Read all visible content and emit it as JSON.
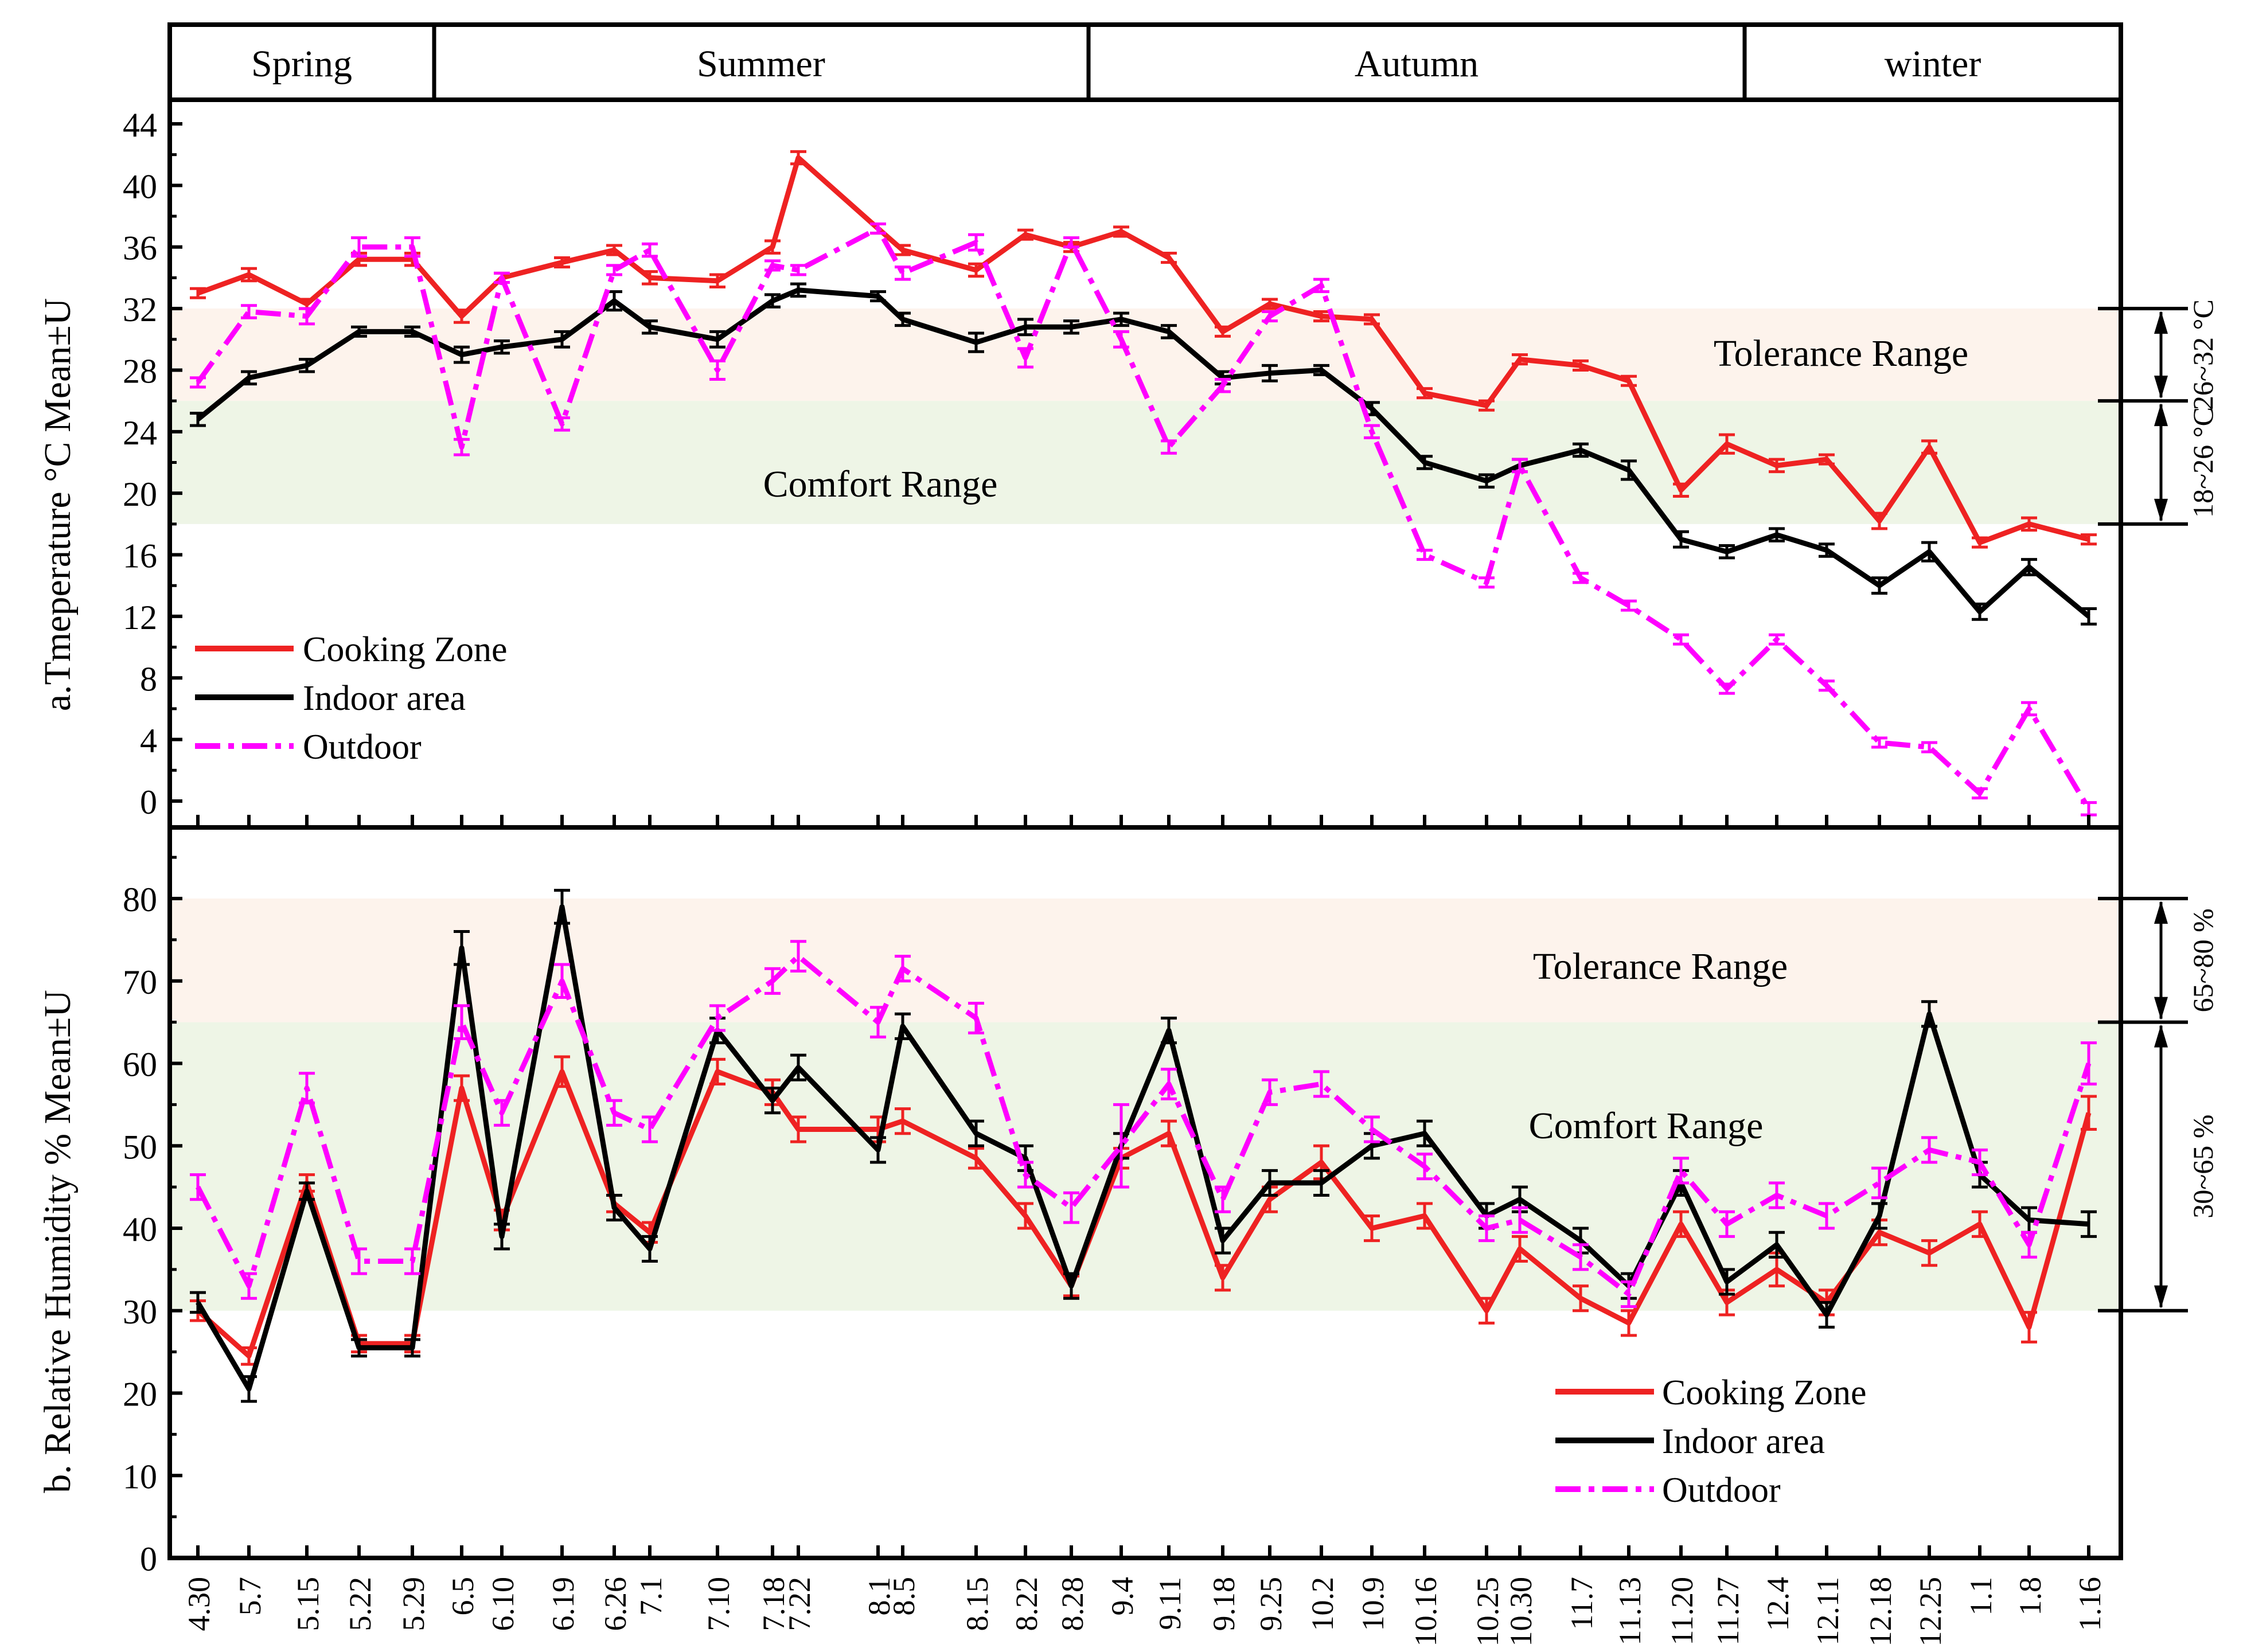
{
  "colors": {
    "cooking": "#ee2222",
    "indoor": "#000000",
    "outdoor": "#ff00ff",
    "tolerance_band": "#fdf3ec",
    "comfort_band": "#eef5e6"
  },
  "seasons": [
    "Spring",
    "Summer",
    "Autumn",
    "winter"
  ],
  "dates": [
    "4.30",
    "5.7",
    "5.15",
    "5.22",
    "5.29",
    "6.5",
    "6.10",
    "6.19",
    "6.26",
    "7.1",
    "7.10",
    "7.18",
    "7.22",
    "8.1",
    "8.5",
    "8.15",
    "8.22",
    "8.28",
    "9.4",
    "9.11",
    "9.18",
    "9.25",
    "10.2",
    "10.9",
    "10.16",
    "10.25",
    "10.30",
    "11.7",
    "11.13",
    "11.20",
    "11.27",
    "12.4",
    "12.11",
    "12.18",
    "12.25",
    "1.1",
    "1.8",
    "1.16"
  ],
  "chart_data": [
    {
      "type": "line",
      "title": "a.Tmeperature °C   Mean±U",
      "ylabel": "a.Tmeperature °C   Mean±U",
      "ylim": [
        -2,
        46
      ],
      "yticks": [
        "0",
        "4",
        "8",
        "12",
        "16",
        "20",
        "24",
        "28",
        "32",
        "36",
        "40",
        "44"
      ],
      "bands": [
        {
          "label": "Tolerance Range",
          "range_label": "26~32 °C",
          "from": 26,
          "to": 32
        },
        {
          "label": "Comfort Range",
          "range_label": "18~26 °C",
          "from": 18,
          "to": 26
        }
      ],
      "legend": [
        "Cooking Zone",
        "Indoor area",
        "Outdoor"
      ],
      "series": [
        {
          "name": "Cooking Zone",
          "values": [
            33.0,
            34.2,
            32.3,
            35.2,
            35.2,
            31.5,
            34.0,
            35.0,
            35.8,
            34.0,
            33.8,
            36.0,
            41.8,
            37.2,
            35.8,
            34.5,
            36.8,
            36.0,
            37.0,
            35.3,
            30.5,
            32.3,
            31.5,
            31.3,
            26.5,
            25.7,
            28.7,
            28.3,
            27.3,
            20.2,
            23.2,
            21.8,
            22.2,
            18.2,
            23.0,
            16.8,
            18.0,
            17.0
          ],
          "err": [
            0.3,
            0.4,
            0.3,
            0.4,
            0.4,
            0.4,
            0.3,
            0.3,
            0.3,
            0.4,
            0.4,
            0.4,
            0.4,
            0.3,
            0.3,
            0.4,
            0.3,
            0.3,
            0.3,
            0.3,
            0.3,
            0.3,
            0.3,
            0.3,
            0.3,
            0.3,
            0.3,
            0.3,
            0.3,
            0.4,
            0.6,
            0.4,
            0.3,
            0.5,
            0.4,
            0.3,
            0.4,
            0.3
          ]
        },
        {
          "name": "Indoor area",
          "values": [
            24.8,
            27.5,
            28.3,
            30.5,
            30.5,
            29.0,
            29.5,
            30.0,
            32.5,
            30.8,
            30.0,
            32.5,
            33.2,
            32.8,
            31.3,
            29.8,
            30.8,
            30.8,
            31.3,
            30.5,
            27.5,
            27.8,
            28.0,
            25.5,
            22.0,
            20.8,
            21.8,
            22.8,
            21.5,
            17.0,
            16.2,
            17.3,
            16.3,
            14.0,
            16.2,
            12.3,
            15.2,
            12.0
          ],
          "err": [
            0.4,
            0.4,
            0.4,
            0.3,
            0.3,
            0.5,
            0.4,
            0.5,
            0.6,
            0.4,
            0.5,
            0.4,
            0.4,
            0.3,
            0.4,
            0.6,
            0.5,
            0.4,
            0.4,
            0.4,
            0.4,
            0.5,
            0.3,
            0.4,
            0.4,
            0.4,
            0.4,
            0.4,
            0.6,
            0.5,
            0.4,
            0.4,
            0.4,
            0.5,
            0.6,
            0.5,
            0.5,
            0.5
          ]
        },
        {
          "name": "Outdoor",
          "values": [
            27.2,
            31.8,
            31.5,
            36.0,
            36.0,
            23.0,
            34.0,
            24.5,
            34.5,
            35.8,
            28.0,
            34.8,
            34.5,
            37.2,
            34.3,
            36.3,
            28.8,
            36.3,
            30.0,
            23.0,
            27.0,
            31.5,
            33.5,
            24.0,
            16.0,
            14.2,
            21.8,
            14.5,
            12.7,
            10.5,
            7.3,
            10.5,
            7.5,
            3.8,
            3.5,
            0.5,
            6.0,
            -0.5
          ],
          "err": [
            0.3,
            0.4,
            0.5,
            0.6,
            0.6,
            0.5,
            0.3,
            0.4,
            0.3,
            0.4,
            0.6,
            0.3,
            0.3,
            0.3,
            0.4,
            0.5,
            0.6,
            0.3,
            0.5,
            0.4,
            0.4,
            0.3,
            0.4,
            0.4,
            0.3,
            0.3,
            0.4,
            0.3,
            0.3,
            0.3,
            0.3,
            0.3,
            0.3,
            0.3,
            0.3,
            0.3,
            0.4,
            0.4
          ]
        }
      ]
    },
    {
      "type": "line",
      "title": "b. Relative Humidity %   Mean±U",
      "ylabel": "b. Relative Humidity %   Mean±U",
      "ylim": [
        0,
        88
      ],
      "yticks": [
        "0",
        "10",
        "20",
        "30",
        "40",
        "50",
        "60",
        "70",
        "80"
      ],
      "bands": [
        {
          "label": "Tolerance Range",
          "range_label": "65~80 %",
          "from": 65,
          "to": 80
        },
        {
          "label": "Comfort Range",
          "range_label": "30~65 %",
          "from": 30,
          "to": 65
        }
      ],
      "legend": [
        "Cooking Zone",
        "Indoor area",
        "Outdoor"
      ],
      "series": [
        {
          "name": "Cooking Zone",
          "values": [
            30.0,
            24.5,
            45.5,
            26.0,
            26.0,
            57.0,
            41.0,
            59.0,
            43.0,
            39.5,
            59.0,
            56.5,
            52.0,
            52.0,
            53.0,
            48.5,
            41.5,
            33.0,
            48.5,
            51.5,
            34.0,
            43.5,
            48.0,
            40.0,
            41.5,
            30.0,
            37.5,
            31.5,
            28.5,
            40.5,
            31.0,
            35.0,
            31.0,
            39.5,
            37.0,
            40.5,
            28.0,
            54.0
          ],
          "err": [
            1.2,
            1.0,
            1.0,
            1.0,
            1.0,
            1.5,
            1.2,
            1.8,
            1.0,
            1.2,
            1.5,
            1.5,
            1.5,
            1.5,
            1.5,
            1.2,
            1.5,
            1.2,
            1.2,
            1.5,
            1.5,
            1.5,
            2.0,
            1.5,
            1.5,
            1.5,
            1.5,
            1.5,
            1.5,
            1.5,
            1.5,
            2.0,
            1.5,
            1.5,
            1.5,
            1.5,
            1.8,
            2.0
          ]
        },
        {
          "name": "Indoor area",
          "values": [
            31.0,
            20.5,
            44.5,
            25.5,
            25.5,
            74.0,
            39.0,
            79.0,
            42.5,
            37.5,
            64.0,
            55.5,
            59.5,
            49.5,
            64.5,
            51.5,
            48.5,
            33.0,
            50.0,
            64.0,
            38.5,
            45.5,
            45.5,
            50.0,
            51.5,
            41.5,
            43.5,
            38.5,
            33.0,
            45.5,
            33.5,
            38.0,
            29.5,
            41.5,
            66.0,
            46.5,
            41.0,
            40.5
          ],
          "err": [
            1.2,
            1.5,
            1.0,
            1.0,
            1.0,
            2.0,
            1.5,
            2.0,
            1.5,
            1.5,
            1.5,
            1.5,
            1.5,
            1.5,
            1.5,
            1.5,
            1.5,
            1.5,
            1.5,
            1.5,
            1.5,
            1.5,
            1.5,
            1.5,
            1.5,
            1.5,
            1.5,
            1.5,
            1.5,
            1.5,
            1.5,
            1.5,
            1.5,
            1.5,
            1.5,
            1.5,
            1.5,
            1.5
          ]
        },
        {
          "name": "Outdoor",
          "values": [
            45.0,
            33.0,
            57.0,
            36.0,
            36.0,
            65.0,
            54.0,
            70.0,
            54.0,
            52.0,
            65.5,
            70.0,
            73.0,
            65.0,
            71.5,
            65.5,
            46.5,
            42.5,
            50.0,
            57.5,
            43.5,
            56.5,
            57.5,
            52.0,
            47.5,
            40.0,
            41.0,
            36.5,
            32.0,
            47.0,
            40.5,
            44.0,
            41.5,
            45.5,
            49.5,
            48.0,
            38.0,
            60.0
          ],
          "err": [
            1.5,
            1.5,
            1.8,
            1.5,
            1.5,
            2.0,
            1.5,
            2.0,
            1.5,
            1.5,
            1.5,
            1.5,
            1.8,
            1.8,
            1.5,
            1.8,
            1.5,
            1.8,
            5.0,
            1.8,
            1.5,
            1.5,
            1.5,
            1.5,
            1.5,
            1.5,
            1.5,
            1.5,
            1.5,
            1.5,
            1.5,
            1.5,
            1.5,
            1.8,
            1.5,
            1.5,
            1.5,
            2.5
          ]
        }
      ]
    }
  ]
}
